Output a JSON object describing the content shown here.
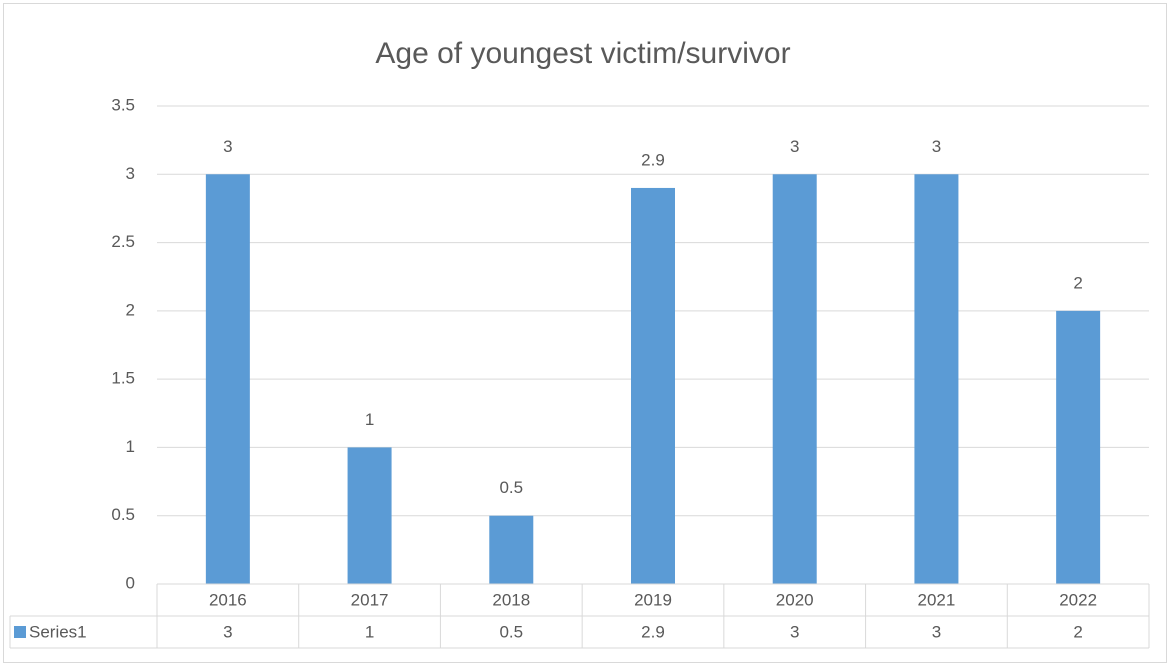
{
  "chart_data": {
    "type": "bar",
    "title": "Age of youngest victim/survivor",
    "categories": [
      "2016",
      "2017",
      "2018",
      "2019",
      "2020",
      "2021",
      "2022"
    ],
    "series": [
      {
        "name": "Series1",
        "color": "#5b9bd5",
        "values": [
          3,
          1,
          0.5,
          2.9,
          3,
          3,
          2
        ]
      }
    ],
    "ylim": [
      0,
      3.5
    ],
    "yticks": [
      0,
      0.5,
      1,
      1.5,
      2,
      2.5,
      3,
      3.5
    ],
    "grid": true,
    "data_table": true
  }
}
